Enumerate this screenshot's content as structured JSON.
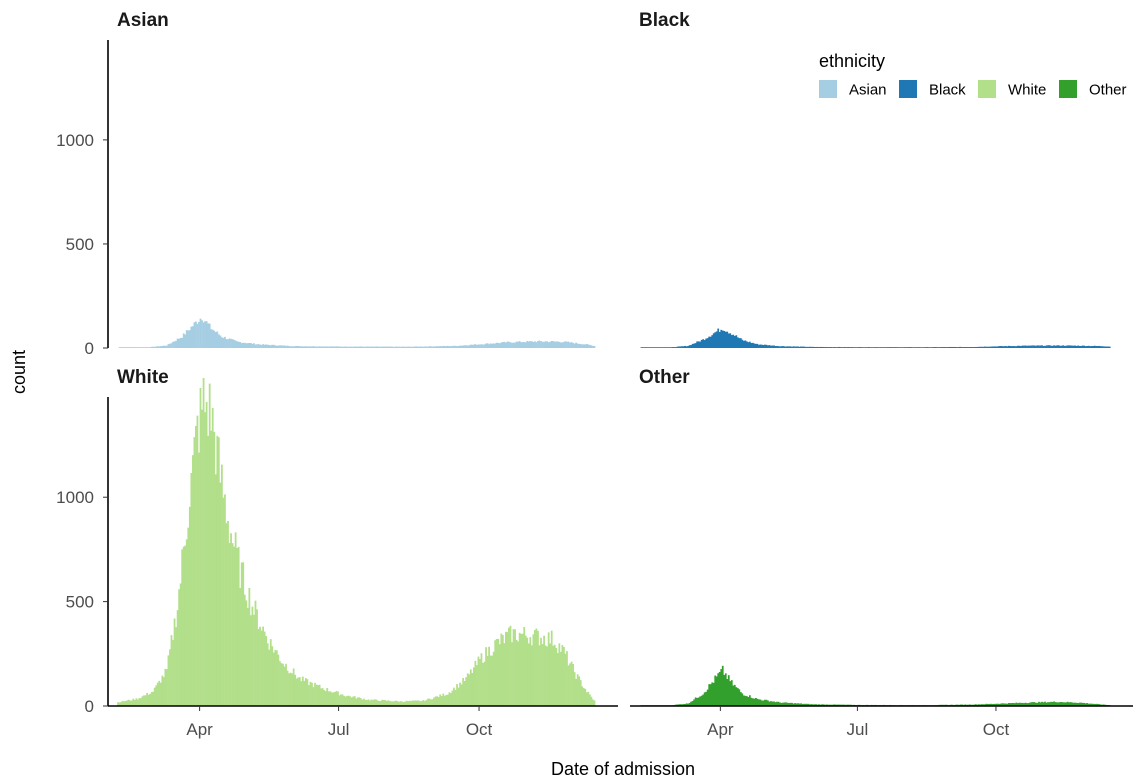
{
  "chart_data": {
    "type": "bar",
    "chart_kind": "faceted daily histogram",
    "xlabel": "Date of admission",
    "ylabel": "count",
    "x_ticks": [
      "Apr",
      "Jul",
      "Oct"
    ],
    "y_ticks": [
      0,
      500,
      1000
    ],
    "ylim": [
      0,
      1480
    ],
    "xlim": [
      "2020-02-01",
      "2020-12-31"
    ],
    "x_range": [
      "2020-02-07",
      "2020-12-15"
    ],
    "bin": "1 day",
    "grid": false,
    "legend": {
      "title": "ethnicity",
      "position": "top-right",
      "items": [
        {
          "label": "Asian",
          "color": "#A6CEE3"
        },
        {
          "label": "Black",
          "color": "#1F78B4"
        },
        {
          "label": "White",
          "color": "#B2DF8A"
        },
        {
          "label": "Other",
          "color": "#33A02C"
        }
      ]
    },
    "facets": [
      {
        "title": "Asian",
        "color": "#A6CEE3",
        "profile": [
          [
            "2020-02-07",
            0
          ],
          [
            "2020-02-25",
            2
          ],
          [
            "2020-03-10",
            12
          ],
          [
            "2020-03-20",
            55
          ],
          [
            "2020-03-28",
            115
          ],
          [
            "2020-04-02",
            150
          ],
          [
            "2020-04-08",
            95
          ],
          [
            "2020-04-15",
            55
          ],
          [
            "2020-04-25",
            30
          ],
          [
            "2020-05-10",
            17
          ],
          [
            "2020-06-01",
            9
          ],
          [
            "2020-07-01",
            7
          ],
          [
            "2020-08-15",
            6
          ],
          [
            "2020-09-15",
            10
          ],
          [
            "2020-10-01",
            18
          ],
          [
            "2020-10-20",
            28
          ],
          [
            "2020-11-10",
            32
          ],
          [
            "2020-11-25",
            30
          ],
          [
            "2020-12-10",
            17
          ],
          [
            "2020-12-15",
            10
          ]
        ]
      },
      {
        "title": "Black",
        "color": "#1F78B4",
        "profile": [
          [
            "2020-02-07",
            0
          ],
          [
            "2020-02-25",
            2
          ],
          [
            "2020-03-10",
            10
          ],
          [
            "2020-03-20",
            40
          ],
          [
            "2020-03-28",
            75
          ],
          [
            "2020-04-02",
            95
          ],
          [
            "2020-04-08",
            70
          ],
          [
            "2020-04-15",
            38
          ],
          [
            "2020-04-25",
            18
          ],
          [
            "2020-05-10",
            9
          ],
          [
            "2020-06-01",
            5
          ],
          [
            "2020-07-01",
            4
          ],
          [
            "2020-08-15",
            4
          ],
          [
            "2020-09-15",
            5
          ],
          [
            "2020-10-01",
            8
          ],
          [
            "2020-10-20",
            11
          ],
          [
            "2020-11-10",
            12
          ],
          [
            "2020-11-25",
            11
          ],
          [
            "2020-12-10",
            9
          ],
          [
            "2020-12-15",
            7
          ]
        ]
      },
      {
        "title": "White",
        "color": "#B2DF8A",
        "profile": [
          [
            "2020-02-07",
            18
          ],
          [
            "2020-02-20",
            35
          ],
          [
            "2020-03-01",
            70
          ],
          [
            "2020-03-10",
            170
          ],
          [
            "2020-03-17",
            480
          ],
          [
            "2020-03-24",
            950
          ],
          [
            "2020-03-30",
            1320
          ],
          [
            "2020-04-03",
            1450
          ],
          [
            "2020-04-08",
            1400
          ],
          [
            "2020-04-14",
            1100
          ],
          [
            "2020-04-20",
            860
          ],
          [
            "2020-04-27",
            650
          ],
          [
            "2020-05-05",
            480
          ],
          [
            "2020-05-15",
            320
          ],
          [
            "2020-05-25",
            210
          ],
          [
            "2020-06-05",
            130
          ],
          [
            "2020-06-20",
            85
          ],
          [
            "2020-07-05",
            50
          ],
          [
            "2020-07-20",
            30
          ],
          [
            "2020-08-10",
            22
          ],
          [
            "2020-08-25",
            25
          ],
          [
            "2020-09-10",
            60
          ],
          [
            "2020-09-22",
            130
          ],
          [
            "2020-10-02",
            230
          ],
          [
            "2020-10-12",
            300
          ],
          [
            "2020-10-22",
            345
          ],
          [
            "2020-11-01",
            340
          ],
          [
            "2020-11-10",
            330
          ],
          [
            "2020-11-18",
            320
          ],
          [
            "2020-11-25",
            260
          ],
          [
            "2020-12-03",
            150
          ],
          [
            "2020-12-10",
            70
          ],
          [
            "2020-12-15",
            25
          ]
        ]
      },
      {
        "title": "Other",
        "color": "#33A02C",
        "profile": [
          [
            "2020-02-07",
            0
          ],
          [
            "2020-02-25",
            2
          ],
          [
            "2020-03-10",
            12
          ],
          [
            "2020-03-20",
            60
          ],
          [
            "2020-03-28",
            130
          ],
          [
            "2020-04-02",
            170
          ],
          [
            "2020-04-08",
            110
          ],
          [
            "2020-04-15",
            60
          ],
          [
            "2020-04-25",
            33
          ],
          [
            "2020-05-10",
            17
          ],
          [
            "2020-06-01",
            8
          ],
          [
            "2020-07-01",
            5
          ],
          [
            "2020-08-15",
            4
          ],
          [
            "2020-09-15",
            7
          ],
          [
            "2020-10-01",
            11
          ],
          [
            "2020-10-20",
            16
          ],
          [
            "2020-11-10",
            20
          ],
          [
            "2020-11-25",
            16
          ],
          [
            "2020-12-10",
            7
          ],
          [
            "2020-12-15",
            4
          ]
        ]
      }
    ]
  }
}
